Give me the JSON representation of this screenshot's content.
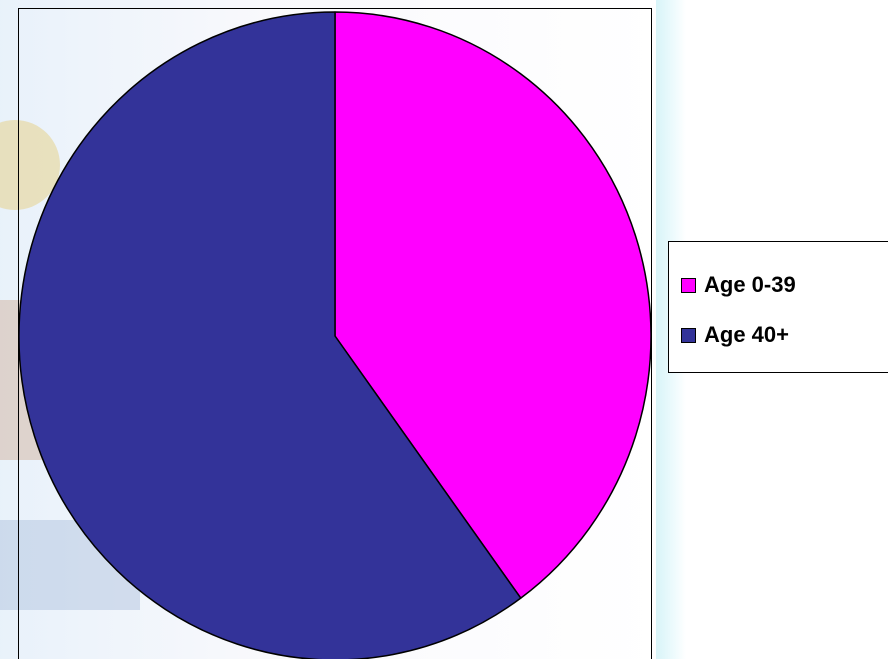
{
  "chart_data": {
    "type": "pie",
    "title": "",
    "legend": "right",
    "start_angle": "top",
    "direction": "clockwise",
    "slices": [
      {
        "name": "Age 0-39",
        "value": 40,
        "color": "#ff00ff"
      },
      {
        "name": "Age 40+",
        "value": 60,
        "color": "#333399"
      }
    ]
  }
}
